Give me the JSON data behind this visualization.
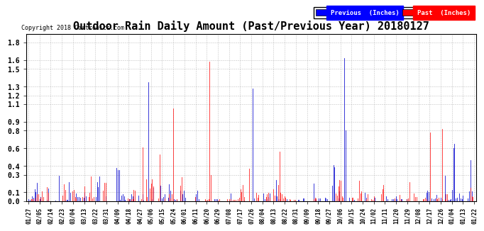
{
  "title": "Outdoor Rain Daily Amount (Past/Previous Year) 20180127",
  "copyright": "Copyright 2018 Cartronics.com",
  "legend_previous": "Previous  (Inches)",
  "legend_past": "Past  (Inches)",
  "yticks": [
    0.0,
    0.1,
    0.3,
    0.4,
    0.6,
    0.8,
    0.9,
    1.1,
    1.2,
    1.3,
    1.5,
    1.6,
    1.8
  ],
  "ylim": [
    0.0,
    1.9
  ],
  "background_color": "#ffffff",
  "grid_color": "#aaaaaa",
  "title_fontsize": 11,
  "legend_blue": "#0000ff",
  "legend_red": "#ff0000",
  "color_previous": "#0000cd",
  "color_past": "#ff0000",
  "color_black": "#000000",
  "x_labels": [
    "01/27",
    "02/05",
    "02/14",
    "02/23",
    "03/04",
    "03/13",
    "03/22",
    "03/31",
    "04/09",
    "04/18",
    "04/27",
    "05/06",
    "05/15",
    "05/24",
    "06/01",
    "06/11",
    "06/20",
    "06/29",
    "07/08",
    "07/17",
    "07/26",
    "08/04",
    "08/13",
    "08/22",
    "08/31",
    "09/09",
    "09/18",
    "09/27",
    "10/06",
    "10/15",
    "10/24",
    "11/02",
    "11/11",
    "11/20",
    "11/29",
    "12/08",
    "12/17",
    "12/26",
    "01/04",
    "01/13",
    "01/22"
  ]
}
